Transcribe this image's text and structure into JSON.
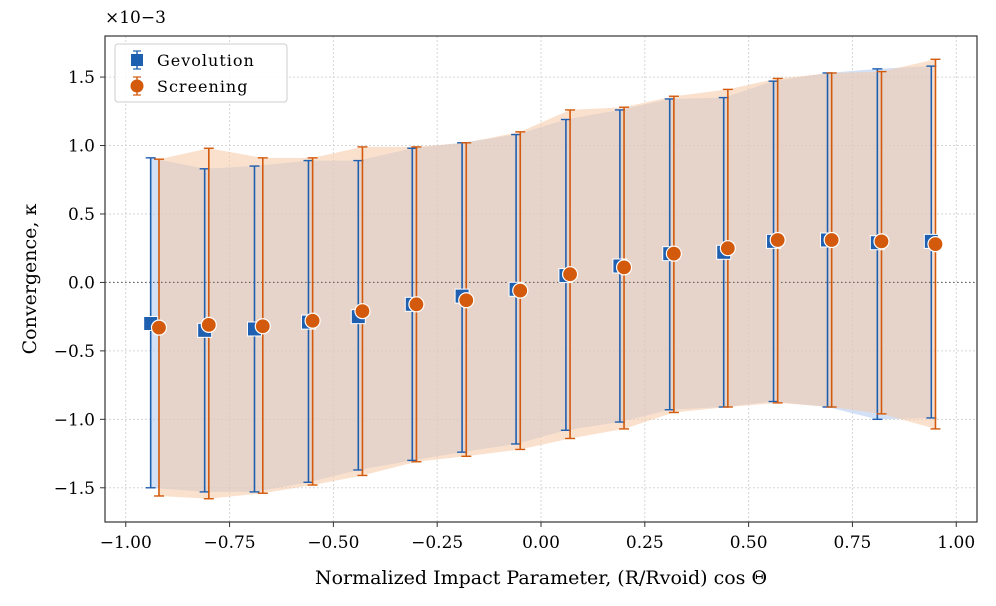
{
  "chart_data": {
    "type": "scatter",
    "xlabel": "Normalized Impact Parameter, (R/Rvoid) cos Θ",
    "ylabel": "Convergence, κ",
    "y_scale_label": "×10−3",
    "xlim": [
      -1.05,
      1.05
    ],
    "ylim": [
      -1.75,
      1.8
    ],
    "xticks": [
      -1.0,
      -0.75,
      -0.5,
      -0.25,
      0.0,
      0.25,
      0.5,
      0.75,
      1.0
    ],
    "xtick_labels": [
      "−1.00",
      "−0.75",
      "−0.50",
      "−0.25",
      "0.00",
      "0.25",
      "0.50",
      "0.75",
      "1.00"
    ],
    "yticks": [
      -1.5,
      -1.0,
      -0.5,
      0.0,
      0.5,
      1.0,
      1.5
    ],
    "ytick_labels": [
      "−1.5",
      "−1.0",
      "−0.5",
      "0.0",
      "0.5",
      "1.0",
      "1.5"
    ],
    "grid": true,
    "legend_position": "top-left",
    "series": [
      {
        "name": "Gevolution",
        "marker": "square",
        "color": "#1f5fb0",
        "band_color": "#aec9ee",
        "x": [
          -0.94,
          -0.81,
          -0.69,
          -0.56,
          -0.44,
          -0.31,
          -0.19,
          -0.06,
          0.06,
          0.19,
          0.31,
          0.44,
          0.56,
          0.69,
          0.81,
          0.94
        ],
        "y": [
          -0.3,
          -0.35,
          -0.34,
          -0.29,
          -0.25,
          -0.16,
          -0.1,
          -0.05,
          0.05,
          0.12,
          0.21,
          0.22,
          0.3,
          0.31,
          0.29,
          0.3
        ],
        "y_upper": [
          0.91,
          0.83,
          0.85,
          0.89,
          0.89,
          0.98,
          1.02,
          1.08,
          1.19,
          1.26,
          1.34,
          1.35,
          1.47,
          1.53,
          1.56,
          1.58
        ],
        "y_lower": [
          -1.5,
          -1.53,
          -1.53,
          -1.46,
          -1.37,
          -1.3,
          -1.24,
          -1.18,
          -1.08,
          -1.02,
          -0.93,
          -0.91,
          -0.87,
          -0.91,
          -1.0,
          -0.99
        ]
      },
      {
        "name": "Screening",
        "marker": "circle",
        "color": "#d35a0c",
        "band_color": "#f6c9a5",
        "x": [
          -0.92,
          -0.8,
          -0.67,
          -0.55,
          -0.43,
          -0.3,
          -0.18,
          -0.05,
          0.07,
          0.2,
          0.32,
          0.45,
          0.57,
          0.7,
          0.82,
          0.95
        ],
        "y": [
          -0.33,
          -0.31,
          -0.32,
          -0.28,
          -0.21,
          -0.16,
          -0.13,
          -0.06,
          0.06,
          0.11,
          0.21,
          0.25,
          0.31,
          0.31,
          0.3,
          0.28
        ],
        "y_upper": [
          0.9,
          0.98,
          0.91,
          0.91,
          0.99,
          0.99,
          1.02,
          1.1,
          1.26,
          1.28,
          1.36,
          1.41,
          1.49,
          1.53,
          1.54,
          1.63
        ],
        "y_lower": [
          -1.56,
          -1.58,
          -1.54,
          -1.48,
          -1.41,
          -1.31,
          -1.27,
          -1.22,
          -1.14,
          -1.07,
          -0.95,
          -0.91,
          -0.88,
          -0.91,
          -0.96,
          -1.07
        ]
      }
    ],
    "reference_line": {
      "y": 0.0,
      "style": "dotted"
    }
  }
}
